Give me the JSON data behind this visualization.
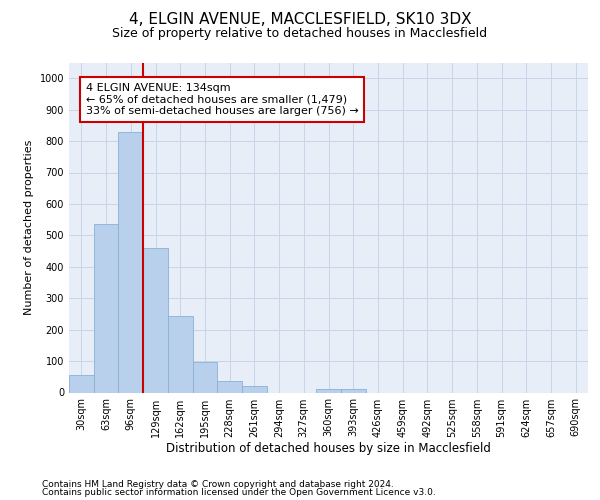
{
  "title1": "4, ELGIN AVENUE, MACCLESFIELD, SK10 3DX",
  "title2": "Size of property relative to detached houses in Macclesfield",
  "xlabel": "Distribution of detached houses by size in Macclesfield",
  "ylabel": "Number of detached properties",
  "categories": [
    "30sqm",
    "63sqm",
    "96sqm",
    "129sqm",
    "162sqm",
    "195sqm",
    "228sqm",
    "261sqm",
    "294sqm",
    "327sqm",
    "360sqm",
    "393sqm",
    "426sqm",
    "459sqm",
    "492sqm",
    "525sqm",
    "558sqm",
    "591sqm",
    "624sqm",
    "657sqm",
    "690sqm"
  ],
  "values": [
    55,
    535,
    830,
    460,
    245,
    97,
    38,
    20,
    0,
    0,
    10,
    10,
    0,
    0,
    0,
    0,
    0,
    0,
    0,
    0,
    0
  ],
  "bar_color": "#b8d0eb",
  "bar_edge_color": "#8ab0d8",
  "vline_color": "#cc0000",
  "annotation_text": "4 ELGIN AVENUE: 134sqm\n← 65% of detached houses are smaller (1,479)\n33% of semi-detached houses are larger (756) →",
  "annotation_box_facecolor": "#ffffff",
  "annotation_box_edgecolor": "#cc0000",
  "grid_color": "#c8d4e8",
  "background_color": "#e8eef8",
  "ylim": [
    0,
    1050
  ],
  "yticks": [
    0,
    100,
    200,
    300,
    400,
    500,
    600,
    700,
    800,
    900,
    1000
  ],
  "footer1": "Contains HM Land Registry data © Crown copyright and database right 2024.",
  "footer2": "Contains public sector information licensed under the Open Government Licence v3.0.",
  "title1_fontsize": 11,
  "title2_fontsize": 9,
  "xlabel_fontsize": 8.5,
  "ylabel_fontsize": 8,
  "tick_fontsize": 7,
  "footer_fontsize": 6.5,
  "annot_fontsize": 8
}
